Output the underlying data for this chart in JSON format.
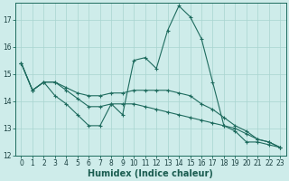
{
  "xlabel": "Humidex (Indice chaleur)",
  "bg_color": "#ceecea",
  "line_color": "#1e6b5e",
  "grid_color": "#a8d5d0",
  "x_values": [
    0,
    1,
    2,
    3,
    4,
    5,
    6,
    7,
    8,
    9,
    10,
    11,
    12,
    13,
    14,
    15,
    16,
    17,
    18,
    19,
    20,
    21,
    22,
    23
  ],
  "line1": [
    15.4,
    14.4,
    14.7,
    14.2,
    13.9,
    13.5,
    13.1,
    13.1,
    13.9,
    13.5,
    15.5,
    15.6,
    15.2,
    16.6,
    17.5,
    17.1,
    16.3,
    14.7,
    13.1,
    12.9,
    12.5,
    12.5,
    12.4,
    12.3
  ],
  "line2": [
    15.4,
    14.4,
    14.7,
    14.7,
    14.5,
    14.3,
    14.2,
    14.2,
    14.3,
    14.3,
    14.4,
    14.4,
    14.4,
    14.4,
    14.3,
    14.2,
    13.9,
    13.7,
    13.4,
    13.1,
    12.9,
    12.6,
    12.5,
    12.3
  ],
  "line3": [
    15.4,
    14.4,
    14.7,
    14.7,
    14.4,
    14.1,
    13.8,
    13.8,
    13.9,
    13.9,
    13.9,
    13.8,
    13.7,
    13.6,
    13.5,
    13.4,
    13.3,
    13.2,
    13.1,
    13.0,
    12.8,
    12.6,
    12.5,
    12.3
  ],
  "ylim_min": 12,
  "ylim_max": 17.6,
  "yticks": [
    12,
    13,
    14,
    15,
    16,
    17
  ],
  "xticks": [
    0,
    1,
    2,
    3,
    4,
    5,
    6,
    7,
    8,
    9,
    10,
    11,
    12,
    13,
    14,
    15,
    16,
    17,
    18,
    19,
    20,
    21,
    22,
    23
  ],
  "tick_fontsize": 5.5,
  "xlabel_fontsize": 7.0
}
